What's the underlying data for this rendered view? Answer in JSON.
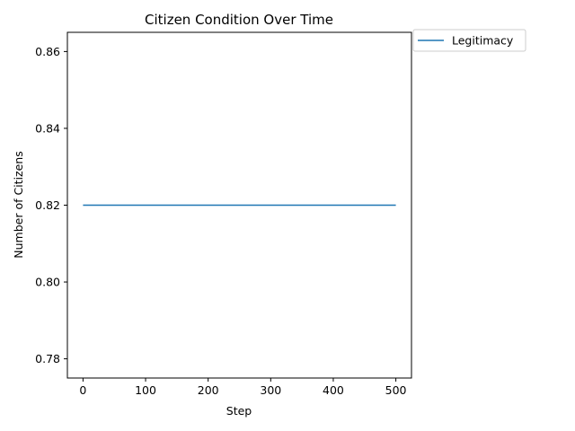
{
  "chart_data": {
    "type": "line",
    "title": "Citizen Condition Over Time",
    "xlabel": "Step",
    "ylabel": "Number of Citizens",
    "xlim": [
      -25,
      525
    ],
    "ylim": [
      0.775,
      0.865
    ],
    "xticks": [
      0,
      100,
      200,
      300,
      400,
      500
    ],
    "xtick_labels": [
      "0",
      "100",
      "200",
      "300",
      "400",
      "500"
    ],
    "yticks": [
      0.78,
      0.8,
      0.82,
      0.84,
      0.86
    ],
    "ytick_labels": [
      "0.78",
      "0.80",
      "0.82",
      "0.84",
      "0.86"
    ],
    "grid": false,
    "legend_position": "outside-top-right",
    "series": [
      {
        "name": "Legitimacy",
        "color": "#1f77b4",
        "x": [
          0,
          500
        ],
        "y": [
          0.82,
          0.82
        ]
      }
    ]
  }
}
